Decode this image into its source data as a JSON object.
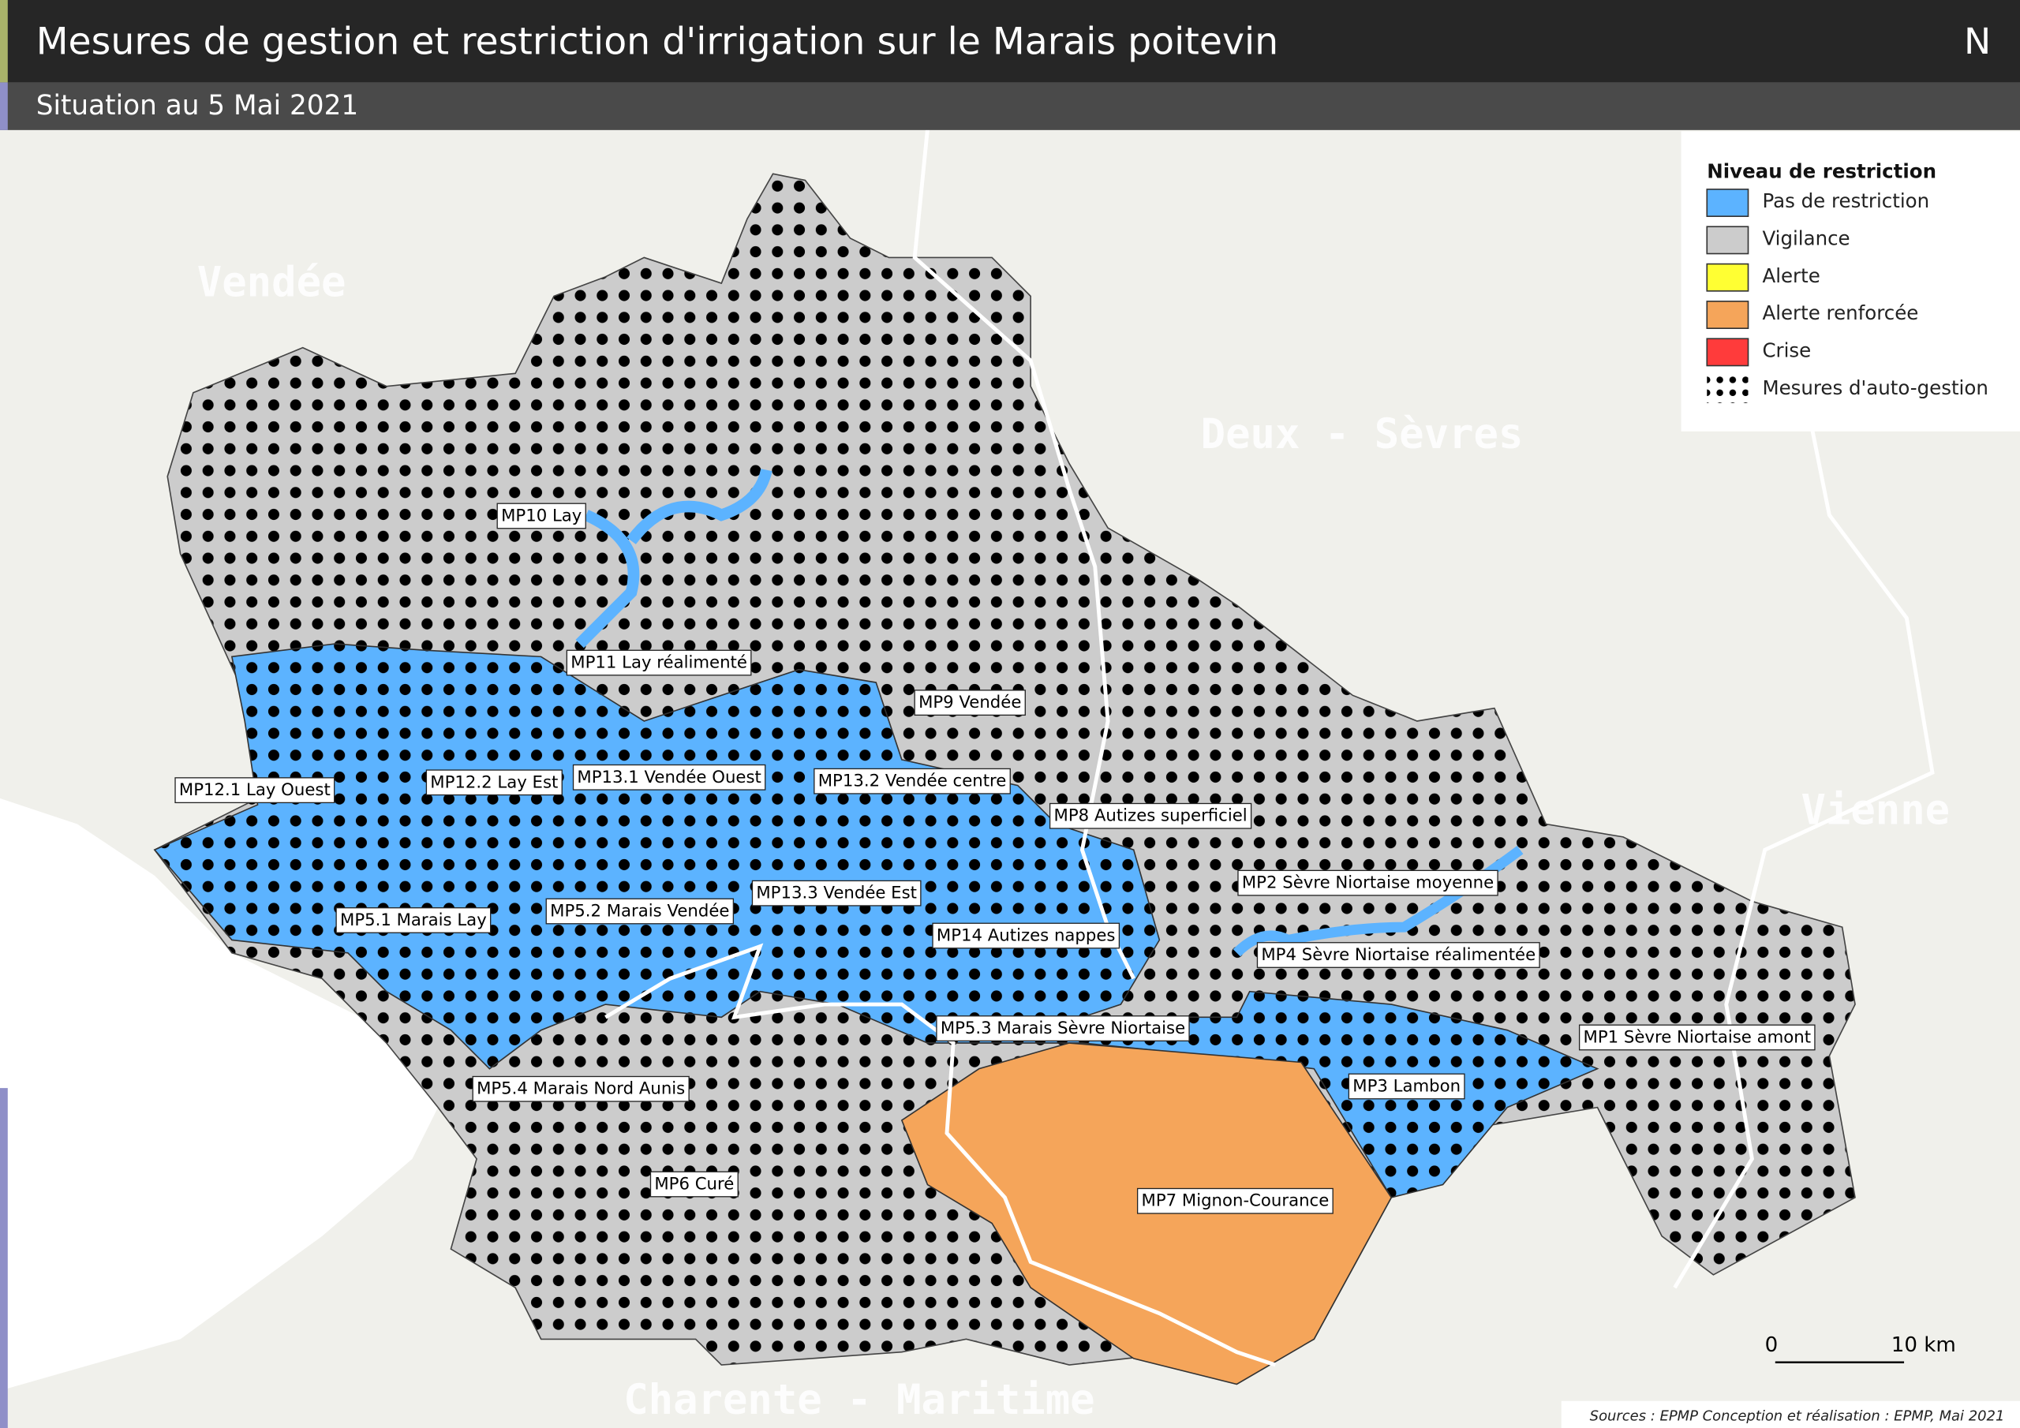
{
  "header": {
    "title": "Mesures de gestion et restriction d'irrigation sur le Marais poitevin",
    "subtitle": "Situation au 5 Mai 2021"
  },
  "north": "N",
  "legend": {
    "title": "Niveau de restriction",
    "items": [
      "Pas de restriction",
      "Vigilance",
      "Alerte",
      "Alerte renforcée",
      "Crise",
      "Mesures d'auto-gestion"
    ]
  },
  "regions": [
    "Vendée",
    "Deux - Sèvres",
    "Vienne",
    "Charente - Maritime"
  ],
  "zones": [
    "MP10 Lay",
    "MP11 Lay réalimenté",
    "MP9 Vendée",
    "MP12.1 Lay Ouest",
    "MP12.2 Lay Est",
    "MP13.1 Vendée Ouest",
    "MP13.2 Vendée centre",
    "MP8 Autizes superficiel",
    "MP2 Sèvre Niortaise moyenne",
    "MP13.3 Vendée Est",
    "MP5.2 Marais Vendée",
    "MP5.1 Marais Lay",
    "MP14 Autizes nappes",
    "MP4 Sèvre Niortaise réalimentée",
    "MP5.3 Marais Sèvre Niortaise",
    "MP1 Sèvre Niortaise amont",
    "MP3 Lambon",
    "MP5.4 Marais Nord Aunis",
    "MP6 Curé",
    "MP7 Mignon-Courance"
  ],
  "scale": {
    "start": "0",
    "end": "10 km"
  },
  "sources": "Sources : EPMP Conception et réalisation : EPMP, Mai 2021"
}
